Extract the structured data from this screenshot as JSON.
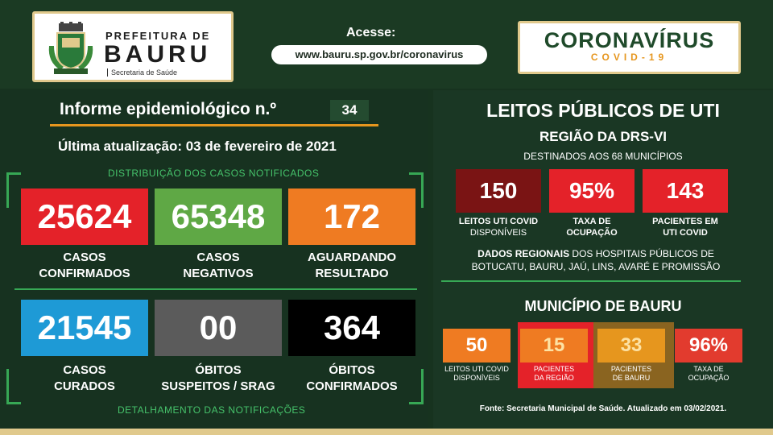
{
  "header": {
    "logo_prefeitura": "PREFEITURA DE",
    "logo_city": "BAURU",
    "logo_secretaria": "Secretaria de Saúde",
    "access_label": "Acesse:",
    "access_url": "www.bauru.sp.gov.br/coronavirus",
    "corona_title": "CORONAVÍRUS",
    "corona_subtitle": "COVID-19"
  },
  "left": {
    "informe_label": "Informe epidemiológico n.º",
    "informe_number": "34",
    "update_text": "Última atualização: 03 de fevereiro de 2021",
    "dist_label": "DISTRIBUIÇÃO DOS CASOS NOTIFICADOS",
    "detail_label": "DETALHAMENTO DAS NOTIFICAÇÕES",
    "stats": [
      {
        "value": "25624",
        "label1": "CASOS",
        "label2": "CONFIRMADOS",
        "color": "#e42229"
      },
      {
        "value": "65348",
        "label1": "CASOS",
        "label2": "NEGATIVOS",
        "color": "#5fa845"
      },
      {
        "value": "172",
        "label1": "AGUARDANDO",
        "label2": "RESULTADO",
        "color": "#ef7b22"
      },
      {
        "value": "21545",
        "label1": "CASOS",
        "label2": "CURADOS",
        "color": "#1e9ad6"
      },
      {
        "value": "00",
        "label1": "ÓBITOS",
        "label2": "SUSPEITOS / SRAG",
        "color": "#5b5b5b"
      },
      {
        "value": "364",
        "label1": "ÓBITOS",
        "label2": "CONFIRMADOS",
        "color": "#000000"
      }
    ]
  },
  "right": {
    "title": "LEITOS PÚBLICOS DE UTI",
    "subtitle": "REGIÃO DA DRS-VI",
    "subtitle2": "DESTINADOS AOS 68 MUNICÍPIOS",
    "uti": [
      {
        "value": "150",
        "label1": "LEITOS UTI COVID",
        "label2": "DISPONÍVEIS",
        "color": "#7a1414"
      },
      {
        "value": "95%",
        "label1": "TAXA DE",
        "label2": "OCUPAÇÃO",
        "color": "#e42229"
      },
      {
        "value": "143",
        "label1": "PACIENTES EM",
        "label2": "UTI COVID",
        "color": "#e42229"
      }
    ],
    "dados_bold": "DADOS REGIONAIS",
    "dados_rest": " DOS HOSPITAIS PÚBLICOS DE BOTUCATU, BAURU, JAÚ, LINS, AVARÉ E PROMISSÃO",
    "mun_title": "MUNICÍPIO DE BAURU",
    "mun": [
      {
        "value": "50",
        "label1": "LEITOS UTI COVID",
        "label2": "DISPONÍVEIS",
        "box": "#ef7b22",
        "text": "#ffffff",
        "col": ""
      },
      {
        "value": "15",
        "label1": "PACIENTES",
        "label2": "DA REGIÃO",
        "box": "#ef7b22",
        "text": "#fde2a4",
        "col": "#e42229"
      },
      {
        "value": "33",
        "label1": "PACIENTES",
        "label2": "DE BAURU",
        "box": "#e6961e",
        "text": "#fde2a4",
        "col": "#8a6420"
      },
      {
        "value": "96%",
        "label1": "TAXA DE",
        "label2": "OCUPAÇÃO",
        "box": "#e23b2e",
        "text": "#ffffff",
        "col": ""
      }
    ],
    "fonte": "Fonte: Secretaria Municipal de Saúde. Atualizado em  03/02/2021."
  }
}
